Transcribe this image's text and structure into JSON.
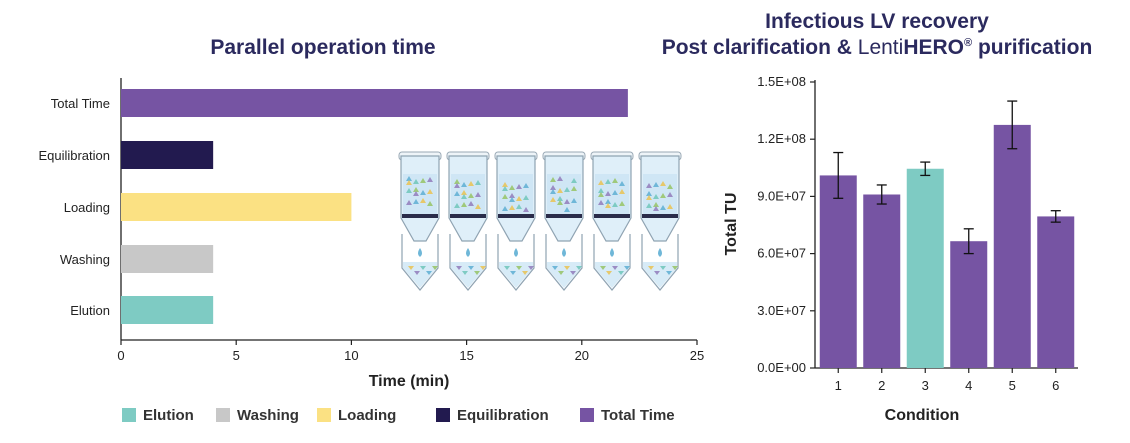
{
  "colors": {
    "elution": "#7ecbc3",
    "washing": "#c8c8c8",
    "loading": "#fbe183",
    "equilibration": "#221a4f",
    "total": "#7654a3",
    "title": "#2b2a5e"
  },
  "chart_data": [
    {
      "type": "bar",
      "orientation": "horizontal",
      "title": "Parallel operation time",
      "xlabel": "Time (min)",
      "ylabel": "",
      "xlim": [
        0,
        25
      ],
      "xticks": [
        "0",
        "5",
        "10",
        "15",
        "20",
        "25"
      ],
      "categories": [
        "Total Time",
        "Equilibration",
        "Loading",
        "Washing",
        "Elution"
      ],
      "values": [
        22,
        4,
        10,
        4,
        4
      ],
      "bar_color_keys": [
        "total",
        "equilibration",
        "loading",
        "washing",
        "elution"
      ],
      "legend": {
        "placement": "bottom",
        "entries": [
          {
            "label": "Elution",
            "color_key": "elution"
          },
          {
            "label": "Washing",
            "color_key": "washing"
          },
          {
            "label": "Loading",
            "color_key": "loading"
          },
          {
            "label": "Equilibration",
            "color_key": "equilibration"
          },
          {
            "label": "Total Time",
            "color_key": "total"
          }
        ]
      },
      "grid": false
    },
    {
      "type": "bar",
      "title_line1": "Infectious LV recovery",
      "title_line2_prefix": "Post clarification & ",
      "title_brand_light": "Lenti",
      "title_brand_bold": "HERO",
      "title_brand_mark": "®",
      "title_line2_suffix": " purification",
      "xlabel": "Condition",
      "ylabel": "Total TU",
      "ylim": [
        0,
        150000000
      ],
      "yticks": [
        "0.0E+00",
        "3.0E+07",
        "6.0E+07",
        "9.0E+07",
        "1.2E+08",
        "1.5E+08"
      ],
      "categories": [
        "1",
        "2",
        "3",
        "4",
        "5",
        "6"
      ],
      "values": [
        101000000,
        91000000,
        104500000,
        66500000,
        127500000,
        79500000
      ],
      "errors": [
        12000000,
        5000000,
        3500000,
        6500000,
        12500000,
        3000000
      ],
      "bar_color_keys": [
        "total",
        "total",
        "elution",
        "total",
        "total",
        "total"
      ],
      "grid": false
    }
  ]
}
